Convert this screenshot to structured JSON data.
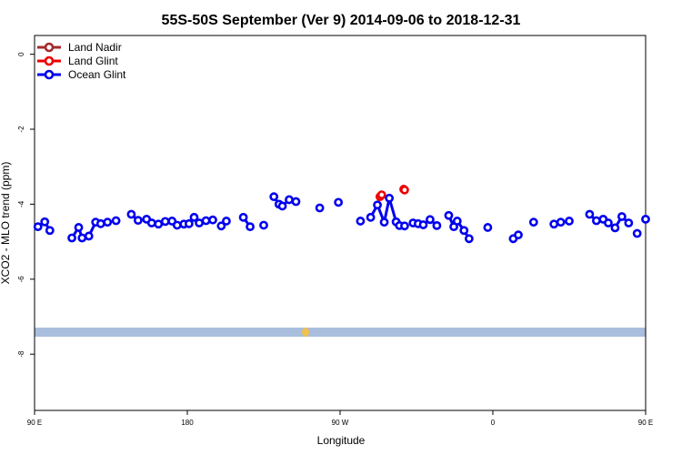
{
  "chart_data": {
    "type": "scatter",
    "title": "55S-50S September (Ver 9)   2014-09-06 to 2018-12-31",
    "xlabel": "Longitude",
    "ylabel": "XCO2 - MLO trend (ppm)",
    "x_domain": [
      90,
      450
    ],
    "ylim": [
      -9.5,
      0.5
    ],
    "x_ticks": [
      {
        "value": 90,
        "label": "90 E"
      },
      {
        "value": 180,
        "label": "180"
      },
      {
        "value": 270,
        "label": "90 W"
      },
      {
        "value": 360,
        "label": "0"
      },
      {
        "value": 450,
        "label": "90 E"
      },
      {
        "value": 540,
        "label": "180"
      }
    ],
    "x_range_labels": [
      90,
      450
    ],
    "y_ticks": [
      {
        "value": 0,
        "label": "0"
      },
      {
        "value": -2,
        "label": "-2"
      },
      {
        "value": -4,
        "label": "-4"
      },
      {
        "value": -6,
        "label": "-6"
      },
      {
        "value": -8,
        "label": "-8"
      }
    ],
    "legend": {
      "position": "top-left"
    },
    "grid": false,
    "map_strip": {
      "y_range": [
        -7.55,
        -7.3
      ],
      "ocean_color": "#a9bedd",
      "land_color": "#f0c050"
    },
    "series": [
      {
        "name": "Land Nadir",
        "color": "#a52a2a",
        "connect_consecutive": true,
        "x": [],
        "y": []
      },
      {
        "name": "Land Glint",
        "color": "#ee0000",
        "connect_consecutive": true,
        "x": [
          293.5,
          294.5,
          307.5,
          308
        ],
        "y": [
          -3.8,
          -3.75,
          -3.6,
          -3.62
        ]
      },
      {
        "name": "Ocean Glint",
        "color": "#0000ee",
        "connect_consecutive": true,
        "x": [
          92,
          96,
          99,
          112,
          116,
          118,
          122,
          126,
          129,
          133,
          138,
          147,
          151,
          156,
          159,
          163,
          167,
          171,
          174,
          178,
          181,
          184,
          187,
          191,
          195,
          200,
          203,
          213,
          217,
          225,
          231,
          234,
          236,
          240,
          244,
          258,
          269,
          282,
          288,
          292,
          296,
          299,
          303,
          305,
          308,
          313,
          316,
          319,
          323,
          327,
          334,
          337,
          339,
          343,
          346,
          357,
          372,
          375,
          384,
          396,
          400,
          405,
          417,
          421,
          425,
          428,
          432,
          436,
          440,
          445,
          450
        ],
        "y": [
          -4.6,
          -4.47,
          -4.7,
          -4.9,
          -4.62,
          -4.9,
          -4.85,
          -4.48,
          -4.52,
          -4.48,
          -4.44,
          -4.27,
          -4.43,
          -4.4,
          -4.5,
          -4.53,
          -4.46,
          -4.45,
          -4.56,
          -4.53,
          -4.52,
          -4.35,
          -4.5,
          -4.44,
          -4.42,
          -4.58,
          -4.45,
          -4.35,
          -4.6,
          -4.56,
          -3.8,
          -4.0,
          -4.05,
          -3.88,
          -3.93,
          -4.1,
          -3.95,
          -4.45,
          -4.35,
          -4.02,
          -4.48,
          -3.84,
          -4.47,
          -4.57,
          -4.58,
          -4.5,
          -4.52,
          -4.55,
          -4.41,
          -4.57,
          -4.3,
          -4.6,
          -4.45,
          -4.7,
          -4.92,
          -4.62,
          -4.92,
          -4.82,
          -4.48,
          -4.53,
          -4.48,
          -4.45,
          -4.27,
          -4.44,
          -4.4,
          -4.5,
          -4.63,
          -4.33,
          -4.5,
          -4.78,
          -4.4
        ]
      }
    ]
  }
}
